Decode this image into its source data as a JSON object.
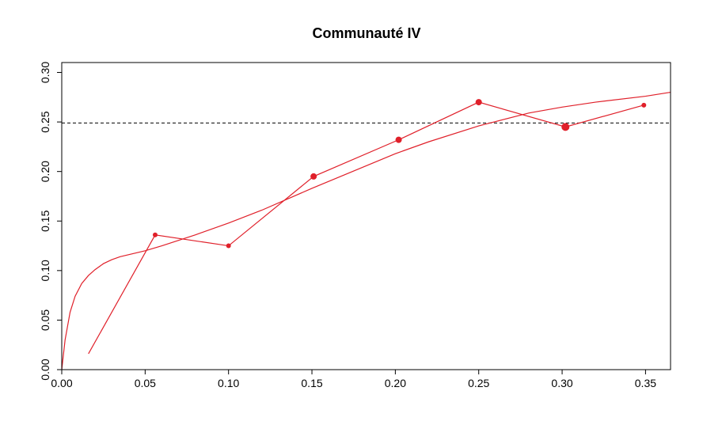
{
  "chart_data": {
    "type": "line",
    "title": "Communauté IV",
    "xlabel": "",
    "ylabel": "",
    "xlim": [
      0.0,
      0.365
    ],
    "ylim": [
      0.0,
      0.31
    ],
    "x_ticks": [
      0.0,
      0.05,
      0.1,
      0.15,
      0.2,
      0.25,
      0.3,
      0.35
    ],
    "x_tick_labels": [
      "0.00",
      "0.05",
      "0.10",
      "0.15",
      "0.20",
      "0.25",
      "0.30",
      "0.35"
    ],
    "y_ticks": [
      0.0,
      0.05,
      0.1,
      0.15,
      0.2,
      0.25,
      0.3
    ],
    "y_tick_labels": [
      "0.00",
      "0.05",
      "0.10",
      "0.15",
      "0.20",
      "0.25",
      "0.30"
    ],
    "reference_line_y": 0.249,
    "color": "#e0202a",
    "grid": false,
    "series": [
      {
        "type": "line-with-points",
        "x": [
          0.016,
          0.056,
          0.1,
          0.151,
          0.202,
          0.25,
          0.302,
          0.349
        ],
        "y": [
          0.016,
          0.136,
          0.125,
          0.195,
          0.232,
          0.27,
          0.245,
          0.267
        ],
        "point_sizes": [
          0,
          3,
          3,
          4,
          4,
          4,
          5,
          3
        ]
      },
      {
        "type": "curve",
        "x": [
          0.0,
          0.002,
          0.005,
          0.008,
          0.012,
          0.016,
          0.02,
          0.025,
          0.03,
          0.035,
          0.04,
          0.05,
          0.06,
          0.08,
          0.1,
          0.12,
          0.15,
          0.18,
          0.2,
          0.22,
          0.25,
          0.28,
          0.3,
          0.32,
          0.35,
          0.365
        ],
        "y": [
          0.0,
          0.03,
          0.058,
          0.074,
          0.087,
          0.095,
          0.101,
          0.107,
          0.111,
          0.114,
          0.116,
          0.12,
          0.125,
          0.136,
          0.148,
          0.161,
          0.183,
          0.204,
          0.218,
          0.23,
          0.246,
          0.259,
          0.265,
          0.27,
          0.276,
          0.28
        ]
      }
    ]
  }
}
